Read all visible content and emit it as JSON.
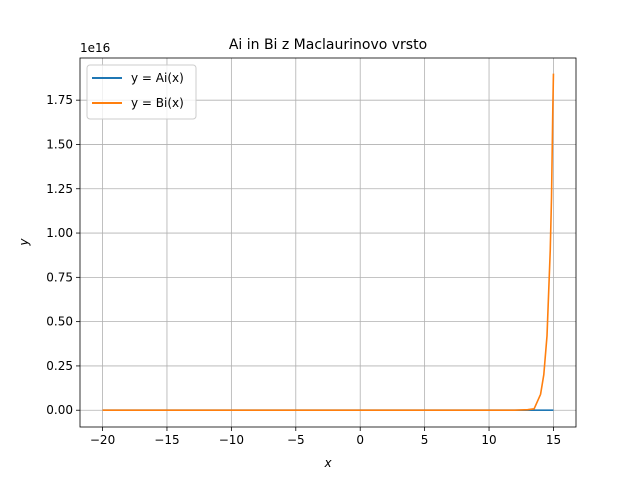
{
  "chart_data": {
    "type": "line",
    "title": "Ai in Bi z Maclaurinovo vrsto",
    "xlabel": "x",
    "ylabel": "y",
    "offset_text": "1e16",
    "xlim": [
      -21.75,
      16.75
    ],
    "ylim": [
      -947000000000000.0,
      1.988e+16
    ],
    "x_ticks": [
      -20,
      -15,
      -10,
      -5,
      0,
      5,
      10,
      15
    ],
    "x_tick_labels": [
      "−20",
      "−15",
      "−10",
      "−5",
      "0",
      "5",
      "10",
      "15"
    ],
    "y_ticks": [
      0,
      2500000000000000.0,
      5000000000000000.0,
      7500000000000000.0,
      1e+16,
      1.25e+16,
      1.5e+16,
      1.75e+16
    ],
    "y_tick_labels": [
      "0.00",
      "0.25",
      "0.50",
      "0.75",
      "1.00",
      "1.25",
      "1.50",
      "1.75"
    ],
    "grid": true,
    "legend_position": "upper-left",
    "series": [
      {
        "name": "y = Ai(x)",
        "color": "#1f77b4",
        "x": [
          -20,
          15
        ],
        "y": [
          0,
          0
        ]
      },
      {
        "name": "y = Bi(x)",
        "color": "#ff7f0e",
        "x": [
          -20,
          12,
          13,
          13.5,
          14,
          14.25,
          14.5,
          14.75,
          14.85,
          14.95,
          15
        ],
        "y": [
          0,
          0,
          30000000000000.0,
          80000000000000.0,
          900000000000000.0,
          2000000000000000.0,
          4200000000000000.0,
          9000000000000000.0,
          1.2e+16,
          1.7e+16,
          1.9e+16
        ]
      }
    ]
  }
}
